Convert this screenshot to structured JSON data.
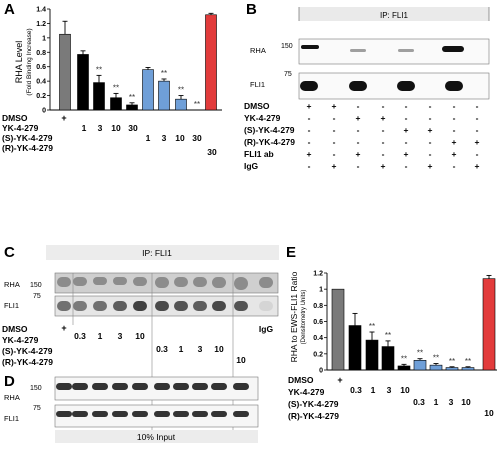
{
  "panels": {
    "A": {
      "letter": "A",
      "ylabel": "RHA Level",
      "ylabel_sub": "(Fold Binding Increase)",
      "row_labels": [
        "DMSO",
        "YK-4-279",
        "(S)-YK-4-279",
        "(R)-YK-4-279"
      ],
      "dmso_mark": "+",
      "yk_doses": [
        "1",
        "3",
        "10",
        "30"
      ],
      "s_doses": [
        "1",
        "3",
        "10",
        "30"
      ],
      "r_doses": [
        "30"
      ],
      "sig": "**"
    },
    "B": {
      "letter": "B",
      "ip_title": "IP: FLI1",
      "blot_labels": [
        "RHA",
        "FLI1"
      ],
      "mw": [
        "150",
        "75"
      ],
      "row_labels": [
        "DMSO",
        "YK-4-279",
        "(S)-YK-4-279",
        "(R)-YK-4-279",
        "FLI1 ab",
        "IgG"
      ],
      "matrix": [
        [
          "+",
          "+",
          "-",
          "-",
          "-",
          "-",
          "-",
          "-"
        ],
        [
          "-",
          "-",
          "+",
          "+",
          "-",
          "-",
          "-",
          "-"
        ],
        [
          "-",
          "-",
          "-",
          "-",
          "+",
          "+",
          "-",
          "-"
        ],
        [
          "-",
          "-",
          "-",
          "-",
          "-",
          "-",
          "+",
          "+"
        ],
        [
          "+",
          "-",
          "+",
          "-",
          "+",
          "-",
          "+",
          "-"
        ],
        [
          "-",
          "+",
          "-",
          "+",
          "-",
          "+",
          "-",
          "+"
        ]
      ]
    },
    "C": {
      "letter": "C",
      "ip_title": "IP: FLI1",
      "blot_labels": [
        "RHA",
        "FLI1"
      ],
      "mw": [
        "150",
        "75"
      ],
      "row_labels": [
        "DMSO",
        "YK-4-279",
        "(S)-YK-4-279",
        "(R)-YK-4-279"
      ],
      "dmso_mark": "+",
      "yk_doses": [
        "0.3",
        "1",
        "3",
        "10"
      ],
      "s_doses": [
        "0.3",
        "1",
        "3",
        "10"
      ],
      "r_doses": [
        "10"
      ],
      "igg": "IgG"
    },
    "D": {
      "letter": "D",
      "blot_labels": [
        "RHA",
        "FLI1"
      ],
      "mw": [
        "150",
        "75"
      ],
      "caption": "10% Input"
    },
    "E": {
      "letter": "E",
      "ylabel": "RHA to EWS-FLI1 Ratio",
      "ylabel_sub": "(Densitometry Units)",
      "row_labels": [
        "DMSO",
        "YK-4-279",
        "(S)-YK-4-279",
        "(R)-YK-4-279"
      ],
      "dmso_mark": "+",
      "yk_doses": [
        "0.3",
        "1",
        "3",
        "10"
      ],
      "s_doses": [
        "0.3",
        "1",
        "3",
        "10"
      ],
      "r_doses": [
        "10"
      ],
      "sig": "**"
    }
  },
  "chart_data": [
    {
      "type": "bar",
      "panel": "A",
      "ylabel": "RHA Level",
      "ylim": [
        0,
        1.4
      ],
      "yticks": [
        "0",
        "0.2",
        "0.4",
        "0.6",
        "0.8",
        "1",
        "1.2",
        "1.4"
      ],
      "values": [
        1.05,
        0.77,
        0.38,
        0.17,
        0.07,
        0.56,
        0.4,
        0.15,
        0.0,
        1.32
      ],
      "errors": [
        0.18,
        0.05,
        0.1,
        0.06,
        0.03,
        0.03,
        0.03,
        0.05,
        0.0,
        0.02
      ],
      "colors": [
        "#7a7a7a",
        "#000000",
        "#000000",
        "#000000",
        "#000000",
        "#6f9fd8",
        "#6f9fd8",
        "#6f9fd8",
        "#6f9fd8",
        "#e23b3b"
      ],
      "significant": [
        false,
        false,
        true,
        true,
        true,
        false,
        true,
        true,
        true,
        false
      ]
    },
    {
      "type": "bar",
      "panel": "E",
      "ylabel": "RHA to EWS-FLI1 Ratio",
      "ylim": [
        0,
        1.2
      ],
      "yticks": [
        "0",
        "0.2",
        "0.4",
        "0.6",
        "0.8",
        "1",
        "1.2"
      ],
      "values": [
        1.0,
        0.55,
        0.37,
        0.29,
        0.05,
        0.12,
        0.06,
        0.03,
        0.03,
        1.13
      ],
      "errors": [
        0.0,
        0.15,
        0.1,
        0.07,
        0.02,
        0.02,
        0.02,
        0.01,
        0.01,
        0.04
      ],
      "colors": [
        "#7a7a7a",
        "#000000",
        "#000000",
        "#000000",
        "#000000",
        "#6f9fd8",
        "#6f9fd8",
        "#6f9fd8",
        "#6f9fd8",
        "#e23b3b"
      ],
      "significant": [
        false,
        false,
        true,
        true,
        true,
        true,
        true,
        true,
        true,
        false
      ]
    }
  ]
}
